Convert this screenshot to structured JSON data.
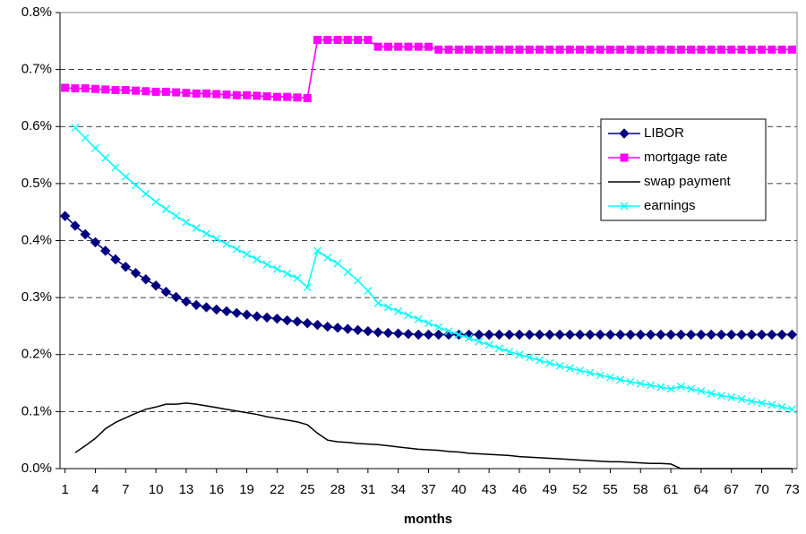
{
  "chart_data": {
    "type": "line",
    "x_label": "months",
    "x": [
      1,
      2,
      3,
      4,
      5,
      6,
      7,
      8,
      9,
      10,
      11,
      12,
      13,
      14,
      15,
      16,
      17,
      18,
      19,
      20,
      21,
      22,
      23,
      24,
      25,
      26,
      27,
      28,
      29,
      30,
      31,
      32,
      33,
      34,
      35,
      36,
      37,
      38,
      39,
      40,
      41,
      42,
      43,
      44,
      45,
      46,
      47,
      48,
      49,
      50,
      51,
      52,
      53,
      54,
      55,
      56,
      57,
      58,
      59,
      60,
      61,
      62,
      63,
      64,
      65,
      66,
      67,
      68,
      69,
      70,
      71,
      72,
      73
    ],
    "xlim": [
      0.5,
      73.5
    ],
    "xticks": [
      1,
      4,
      7,
      10,
      13,
      16,
      19,
      22,
      25,
      28,
      31,
      34,
      37,
      40,
      43,
      46,
      49,
      52,
      55,
      58,
      61,
      64,
      67,
      70,
      73
    ],
    "ylim": [
      0,
      0.8
    ],
    "yticks": [
      {
        "value": 0,
        "label": "0.0%"
      },
      {
        "value": 0.1,
        "label": "0.1%"
      },
      {
        "value": 0.2,
        "label": "0.2%"
      },
      {
        "value": 0.3,
        "label": "0.3%"
      },
      {
        "value": 0.4,
        "label": "0.4%"
      },
      {
        "value": 0.5,
        "label": "0.5%"
      },
      {
        "value": 0.6,
        "label": "0.6%"
      },
      {
        "value": 0.7,
        "label": "0.7%"
      },
      {
        "value": 0.8,
        "label": "0.8%"
      }
    ],
    "grid": true,
    "legend": "right",
    "series": [
      {
        "name": "LIBOR",
        "color": "#000080",
        "marker": "diamond",
        "values": [
          0.443,
          0.426,
          0.411,
          0.397,
          0.382,
          0.367,
          0.354,
          0.343,
          0.332,
          0.321,
          0.31,
          0.301,
          0.293,
          0.287,
          0.283,
          0.279,
          0.276,
          0.273,
          0.27,
          0.267,
          0.265,
          0.263,
          0.26,
          0.258,
          0.255,
          0.252,
          0.249,
          0.247,
          0.245,
          0.243,
          0.241,
          0.239,
          0.238,
          0.237,
          0.236,
          0.235,
          0.235,
          0.235,
          0.235,
          0.235,
          0.235,
          0.235,
          0.235,
          0.235,
          0.235,
          0.235,
          0.235,
          0.235,
          0.235,
          0.235,
          0.235,
          0.235,
          0.235,
          0.235,
          0.235,
          0.235,
          0.235,
          0.235,
          0.235,
          0.235,
          0.235,
          0.235,
          0.235,
          0.235,
          0.235,
          0.235,
          0.235,
          0.235,
          0.235,
          0.235,
          0.235,
          0.235,
          0.235
        ]
      },
      {
        "name": "mortgage rate",
        "color": "#ff00ff",
        "marker": "square",
        "values": [
          0.668,
          0.667,
          0.667,
          0.666,
          0.665,
          0.664,
          0.664,
          0.663,
          0.662,
          0.661,
          0.661,
          0.66,
          0.659,
          0.658,
          0.658,
          0.657,
          0.656,
          0.655,
          0.655,
          0.654,
          0.653,
          0.652,
          0.652,
          0.651,
          0.65,
          0.752,
          0.752,
          0.752,
          0.752,
          0.752,
          0.752,
          0.74,
          0.74,
          0.74,
          0.74,
          0.74,
          0.74,
          0.735,
          0.735,
          0.735,
          0.735,
          0.735,
          0.735,
          0.735,
          0.735,
          0.735,
          0.735,
          0.735,
          0.735,
          0.735,
          0.735,
          0.735,
          0.735,
          0.735,
          0.735,
          0.735,
          0.735,
          0.735,
          0.735,
          0.735,
          0.735,
          0.735,
          0.735,
          0.735,
          0.735,
          0.735,
          0.735,
          0.735,
          0.735,
          0.735,
          0.735,
          0.735,
          0.735
        ]
      },
      {
        "name": "swap payment",
        "color": "#000000",
        "marker": "none",
        "values": [
          null,
          0.028,
          0.04,
          0.053,
          0.07,
          0.081,
          0.089,
          0.097,
          0.104,
          0.108,
          0.113,
          0.113,
          0.115,
          0.113,
          0.11,
          0.107,
          0.104,
          0.101,
          0.098,
          0.095,
          0.091,
          0.088,
          0.085,
          0.082,
          0.077,
          0.062,
          0.05,
          0.047,
          0.046,
          0.044,
          0.043,
          0.042,
          0.04,
          0.038,
          0.036,
          0.034,
          0.033,
          0.032,
          0.03,
          0.029,
          0.027,
          0.026,
          0.025,
          0.024,
          0.023,
          0.021,
          0.02,
          0.019,
          0.018,
          0.017,
          0.016,
          0.015,
          0.014,
          0.013,
          0.012,
          0.012,
          0.011,
          0.01,
          0.009,
          0.009,
          0.008,
          0,
          0,
          0,
          0,
          0,
          0,
          0,
          0,
          0,
          0,
          0,
          0
        ]
      },
      {
        "name": "earnings",
        "color": "#00ffff",
        "marker": "x",
        "values": [
          null,
          0.598,
          0.58,
          0.562,
          0.545,
          0.528,
          0.512,
          0.497,
          0.482,
          0.468,
          0.455,
          0.443,
          0.432,
          0.422,
          0.412,
          0.403,
          0.394,
          0.385,
          0.376,
          0.367,
          0.358,
          0.35,
          0.342,
          0.334,
          0.318,
          0.382,
          0.37,
          0.36,
          0.345,
          0.33,
          0.312,
          0.29,
          0.283,
          0.276,
          0.269,
          0.262,
          0.255,
          0.248,
          0.241,
          0.235,
          0.229,
          0.223,
          0.217,
          0.211,
          0.205,
          0.2,
          0.195,
          0.19,
          0.185,
          0.18,
          0.176,
          0.172,
          0.168,
          0.164,
          0.16,
          0.156,
          0.152,
          0.149,
          0.146,
          0.143,
          0.14,
          0.144,
          0.14,
          0.136,
          0.132,
          0.128,
          0.125,
          0.122,
          0.118,
          0.115,
          0.112,
          0.108,
          0.104
        ]
      }
    ]
  }
}
